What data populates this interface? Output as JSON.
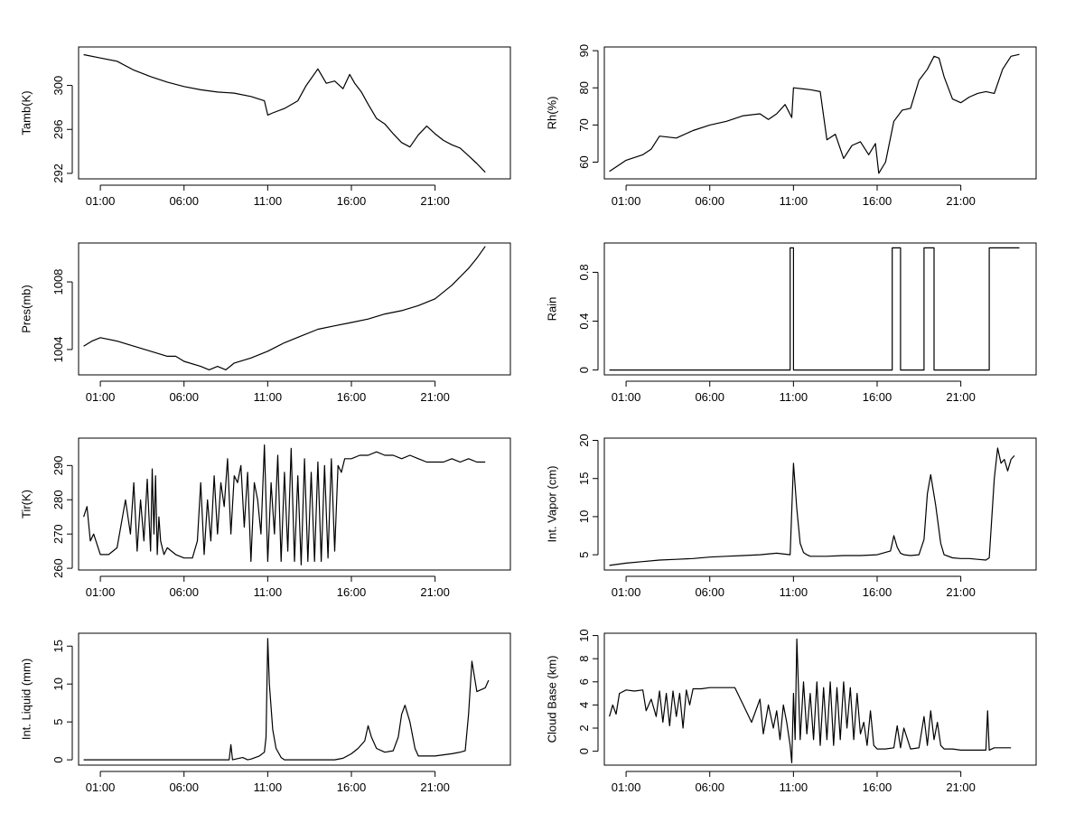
{
  "x_ticks": [
    "01:00",
    "06:00",
    "11:00",
    "16:00",
    "21:00"
  ],
  "chart_data": [
    {
      "id": "tamb",
      "type": "line",
      "ylabel": "Tamb(K)",
      "ylim": [
        291.5,
        303.5
      ],
      "yticks": [
        292,
        296,
        300
      ],
      "xlim": [
        -0.3,
        25.5
      ],
      "x": [
        0,
        1,
        2,
        3,
        4,
        5,
        6,
        7,
        8,
        9,
        10,
        10.8,
        11.0,
        11.3,
        12,
        12.8,
        13.3,
        14.0,
        14.5,
        15.0,
        15.5,
        15.9,
        16.2,
        16.6,
        17,
        17.5,
        18,
        18.5,
        19,
        19.5,
        20,
        20.5,
        21,
        21.5,
        22,
        22.5,
        23,
        23.5,
        24
      ],
      "values": [
        302.8,
        302.5,
        302.2,
        301.4,
        300.8,
        300.3,
        299.9,
        299.6,
        299.4,
        299.3,
        299.0,
        298.6,
        297.3,
        297.5,
        297.9,
        298.6,
        300.0,
        301.5,
        300.2,
        300.4,
        299.7,
        301.0,
        300.2,
        299.4,
        298.3,
        297.0,
        296.5,
        295.6,
        294.8,
        294.4,
        295.5,
        296.3,
        295.6,
        295.0,
        294.6,
        294.3,
        293.6,
        292.9,
        292.1
      ]
    },
    {
      "id": "rh",
      "type": "line",
      "ylabel": "Rh(%)",
      "ylim": [
        55.5,
        91
      ],
      "yticks": [
        60,
        70,
        80,
        90
      ],
      "xlim": [
        -0.3,
        25.5
      ],
      "x": [
        0,
        0.5,
        1,
        2,
        2.5,
        3,
        4,
        5,
        6,
        7,
        8,
        9,
        9.5,
        10,
        10.5,
        10.9,
        11.0,
        12.0,
        12.6,
        13.0,
        13.5,
        14.0,
        14.5,
        15.0,
        15.5,
        15.9,
        16.1,
        16.5,
        17.0,
        17.5,
        18.0,
        18.5,
        19.0,
        19.4,
        19.7,
        20.0,
        20.5,
        21.0,
        21.5,
        22.0,
        22.5,
        23.0,
        23.5,
        24.0,
        24.5
      ],
      "values": [
        57.5,
        59.0,
        60.5,
        62.0,
        63.5,
        67.0,
        66.5,
        68.5,
        70.0,
        71.0,
        72.5,
        73.0,
        71.5,
        73.0,
        75.5,
        72.0,
        80.0,
        79.5,
        79.0,
        66.0,
        67.5,
        61.0,
        64.5,
        65.5,
        62.0,
        65.0,
        57.0,
        60.0,
        71.0,
        74.0,
        74.5,
        82.0,
        85.0,
        88.5,
        88.0,
        83.0,
        77.0,
        76.0,
        77.5,
        78.5,
        79.0,
        78.5,
        85.0,
        88.5,
        89.0
      ]
    },
    {
      "id": "pres",
      "type": "line",
      "ylabel": "Pres(mb)",
      "ylim": [
        1002.5,
        1010.3
      ],
      "yticks": [
        1004,
        1008
      ],
      "xlim": [
        -0.3,
        25.5
      ],
      "x": [
        0,
        0.5,
        1,
        2,
        3,
        4,
        5,
        5.5,
        6,
        7,
        7.5,
        8,
        8.5,
        9,
        10,
        11,
        12,
        13,
        14,
        15,
        16,
        17,
        18,
        19,
        20,
        21,
        22,
        23,
        23.5,
        24
      ],
      "values": [
        1004.2,
        1004.5,
        1004.7,
        1004.5,
        1004.2,
        1003.9,
        1003.6,
        1003.6,
        1003.3,
        1003.0,
        1002.8,
        1003.0,
        1002.8,
        1003.2,
        1003.5,
        1003.9,
        1004.4,
        1004.8,
        1005.2,
        1005.4,
        1005.6,
        1005.8,
        1006.1,
        1006.3,
        1006.6,
        1007.0,
        1007.8,
        1008.8,
        1009.4,
        1010.1
      ]
    },
    {
      "id": "rain",
      "type": "step",
      "ylabel": "Rain",
      "ylim": [
        -0.04,
        1.04
      ],
      "yticks": [
        0.0,
        0.4,
        0.8
      ],
      "xlim": [
        -0.3,
        25.5
      ],
      "x": [
        0,
        10.8,
        10.8,
        11.0,
        11.0,
        16.9,
        16.9,
        17.4,
        17.4,
        18.8,
        18.8,
        19.4,
        19.4,
        22.7,
        22.7,
        24.5
      ],
      "values": [
        0,
        0,
        1,
        1,
        0,
        0,
        1,
        1,
        0,
        0,
        1,
        1,
        0,
        0,
        1,
        1
      ]
    },
    {
      "id": "tir",
      "type": "line",
      "ylabel": "Tir(K)",
      "ylim": [
        259.5,
        298
      ],
      "yticks": [
        260,
        270,
        280,
        290
      ],
      "xlim": [
        -0.3,
        25.5
      ],
      "x": [
        0,
        0.2,
        0.4,
        0.6,
        1.0,
        1.5,
        2.0,
        2.5,
        2.8,
        3.0,
        3.2,
        3.4,
        3.6,
        3.8,
        4.0,
        4.1,
        4.2,
        4.3,
        4.4,
        4.5,
        4.6,
        4.8,
        5.0,
        5.5,
        6.0,
        6.5,
        6.8,
        7.0,
        7.2,
        7.4,
        7.6,
        7.8,
        8.0,
        8.2,
        8.4,
        8.6,
        8.8,
        9.0,
        9.2,
        9.4,
        9.6,
        9.8,
        10.0,
        10.2,
        10.4,
        10.6,
        10.8,
        11.0,
        11.2,
        11.4,
        11.6,
        11.8,
        12.0,
        12.2,
        12.4,
        12.6,
        12.8,
        13.0,
        13.2,
        13.4,
        13.6,
        13.8,
        14.0,
        14.2,
        14.4,
        14.6,
        14.8,
        15.0,
        15.2,
        15.4,
        15.6,
        15.8,
        16.0,
        16.5,
        17.0,
        17.5,
        18.0,
        18.5,
        19.0,
        19.5,
        20.0,
        20.5,
        21.0,
        21.5,
        22.0,
        22.5,
        23.0,
        23.5,
        24.0
      ],
      "values": [
        275,
        278,
        268,
        270,
        264,
        264,
        266,
        280,
        270,
        285,
        265,
        280,
        268,
        286,
        265,
        289,
        270,
        287,
        264,
        275,
        268,
        264,
        266,
        264,
        263,
        263,
        268,
        285,
        264,
        280,
        268,
        287,
        270,
        285,
        278,
        292,
        270,
        287,
        285,
        290,
        272,
        288,
        262,
        285,
        280,
        270,
        296,
        262,
        285,
        270,
        293,
        262,
        288,
        265,
        295,
        262,
        287,
        261,
        292,
        262,
        288,
        262,
        291,
        262,
        290,
        263,
        292,
        265,
        290,
        288,
        292,
        292,
        292,
        293,
        293,
        294,
        293,
        293,
        292,
        293,
        292,
        291,
        291,
        291,
        292,
        291,
        292,
        291,
        291
      ]
    },
    {
      "id": "vapor",
      "type": "line",
      "ylabel": "Int. Vapor (cm)",
      "ylim": [
        3,
        20.3
      ],
      "yticks": [
        5,
        10,
        15,
        20
      ],
      "xlim": [
        -0.3,
        25.5
      ],
      "x": [
        0,
        1,
        2,
        3,
        4,
        5,
        6,
        7,
        8,
        9,
        10,
        10.8,
        11.0,
        11.2,
        11.4,
        11.6,
        11.8,
        12,
        13,
        14,
        15,
        16,
        16.8,
        17.0,
        17.2,
        17.4,
        17.6,
        18,
        18.5,
        18.8,
        19.0,
        19.2,
        19.5,
        19.8,
        20,
        20.5,
        21,
        21.5,
        22,
        22.5,
        22.7,
        23.0,
        23.2,
        23.4,
        23.6,
        23.8,
        24.0,
        24.2
      ],
      "values": [
        3.6,
        3.9,
        4.1,
        4.3,
        4.4,
        4.5,
        4.7,
        4.8,
        4.9,
        5.0,
        5.2,
        5.0,
        17.0,
        11.0,
        6.5,
        5.3,
        5.0,
        4.8,
        4.8,
        4.9,
        4.9,
        5.0,
        5.5,
        7.5,
        6.0,
        5.2,
        5.0,
        4.9,
        5.0,
        7.0,
        13.0,
        15.5,
        11.5,
        6.5,
        5.0,
        4.6,
        4.5,
        4.5,
        4.4,
        4.3,
        4.6,
        15.0,
        19.0,
        17.0,
        17.5,
        16.0,
        17.5,
        18.0
      ]
    },
    {
      "id": "liquid",
      "type": "line",
      "ylabel": "Int. Liquid (mm)",
      "ylim": [
        -0.7,
        16.7
      ],
      "yticks": [
        0,
        5,
        10,
        15
      ],
      "xlim": [
        -0.3,
        25.5
      ],
      "x": [
        0,
        2,
        4,
        6,
        8,
        8.7,
        8.8,
        8.9,
        9.5,
        9.8,
        10.0,
        10.5,
        10.8,
        10.9,
        11.0,
        11.1,
        11.3,
        11.5,
        11.8,
        12,
        14,
        15,
        15.5,
        16.0,
        16.4,
        16.8,
        17.0,
        17.2,
        17.5,
        18,
        18.5,
        18.8,
        19.0,
        19.2,
        19.5,
        19.8,
        20,
        21,
        22,
        22.5,
        22.8,
        23.0,
        23.2,
        23.5,
        24.0,
        24.2
      ],
      "values": [
        0,
        0,
        0,
        0,
        0,
        0,
        2.0,
        0,
        0.3,
        0,
        0.1,
        0.5,
        1.0,
        3.0,
        16.0,
        10.0,
        4.0,
        1.5,
        0.3,
        0,
        0,
        0,
        0.2,
        0.8,
        1.5,
        2.5,
        4.5,
        3.0,
        1.5,
        1.0,
        1.2,
        3.0,
        6.0,
        7.2,
        5.0,
        1.5,
        0.5,
        0.5,
        0.8,
        1.0,
        1.2,
        6.0,
        13.0,
        9.0,
        9.5,
        10.5
      ]
    },
    {
      "id": "cloud",
      "type": "line",
      "ylabel": "Cloud Base (km)",
      "ylim": [
        -1.2,
        10.2
      ],
      "yticks": [
        0,
        2,
        4,
        6,
        8,
        10
      ],
      "xlim": [
        -0.3,
        25.5
      ],
      "x": [
        0,
        0.2,
        0.4,
        0.6,
        1.0,
        1.5,
        2.0,
        2.2,
        2.5,
        2.8,
        3.0,
        3.2,
        3.4,
        3.6,
        3.8,
        4.0,
        4.2,
        4.4,
        4.6,
        4.8,
        5.0,
        5.5,
        6.0,
        6.5,
        7.0,
        7.5,
        8.0,
        8.5,
        9.0,
        9.2,
        9.5,
        9.8,
        10.0,
        10.2,
        10.4,
        10.6,
        10.8,
        10.9,
        11.0,
        11.1,
        11.2,
        11.4,
        11.6,
        11.8,
        12.0,
        12.2,
        12.4,
        12.6,
        12.8,
        13.0,
        13.2,
        13.4,
        13.6,
        13.8,
        14.0,
        14.2,
        14.4,
        14.6,
        14.8,
        15.0,
        15.2,
        15.4,
        15.6,
        15.8,
        16.0,
        16.5,
        17.0,
        17.2,
        17.4,
        17.6,
        18.0,
        18.5,
        18.8,
        19.0,
        19.2,
        19.4,
        19.6,
        19.8,
        20.0,
        20.5,
        21.0,
        22.0,
        22.5,
        22.6,
        22.7,
        23.0,
        23.5,
        24.0
      ],
      "values": [
        3.0,
        4.0,
        3.2,
        5.0,
        5.3,
        5.2,
        5.3,
        3.5,
        4.5,
        3.0,
        5.2,
        2.5,
        5.0,
        2.2,
        5.2,
        3.0,
        5.0,
        2.0,
        5.3,
        4.0,
        5.4,
        5.4,
        5.5,
        5.5,
        5.5,
        5.5,
        4.0,
        2.5,
        4.5,
        1.5,
        4.0,
        2.0,
        3.5,
        1.0,
        4.0,
        2.5,
        0.5,
        -1.0,
        5.0,
        1.0,
        9.7,
        1.0,
        6.0,
        1.5,
        5.0,
        1.0,
        6.0,
        0.5,
        5.5,
        1.0,
        6.0,
        0.5,
        5.5,
        1.0,
        6.0,
        2.0,
        5.5,
        1.0,
        5.0,
        1.5,
        2.5,
        0.5,
        3.5,
        0.5,
        0.2,
        0.2,
        0.3,
        2.2,
        0.3,
        2.0,
        0.2,
        0.3,
        3.0,
        0.5,
        3.5,
        1.0,
        2.5,
        0.5,
        0.2,
        0.2,
        0.1,
        0.1,
        0.1,
        3.5,
        0.1,
        0.3,
        0.3,
        0.3
      ]
    }
  ]
}
